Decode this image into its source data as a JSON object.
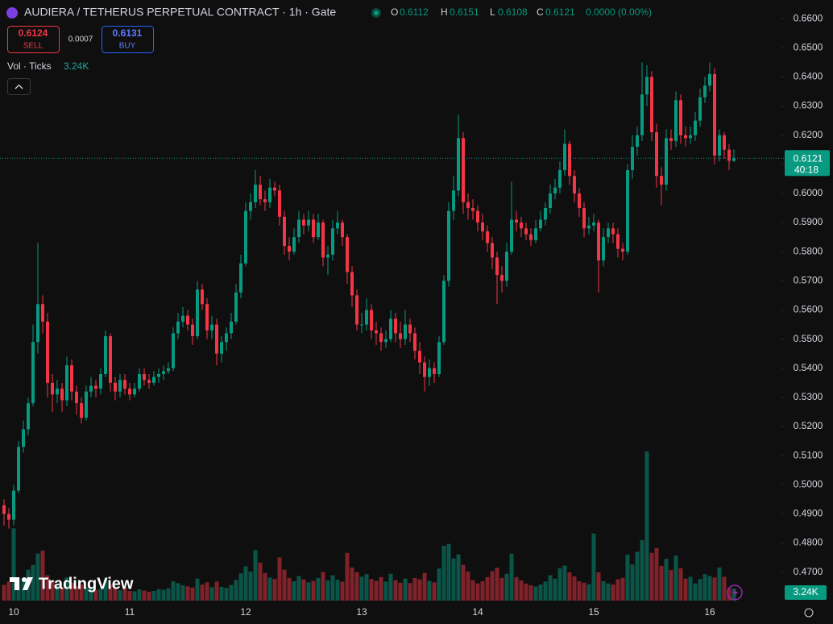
{
  "header": {
    "title": "AUDIERA / TETHERUS PERPETUAL CONTRACT · 1h · Gate",
    "o": "O",
    "h": "H",
    "l": "L",
    "c": "C",
    "change": "0.0000 (0.00%)"
  },
  "order_panel": {
    "sell_price": "0.6124",
    "sell": "SELL",
    "spread": "0.0007",
    "buy_price": "0.6131",
    "buy": "BUY"
  },
  "volume_legend": "Vol · Ticks",
  "watermark": "TradingView",
  "chart_data": {
    "type": "candlestick",
    "up_color": "#089981",
    "down_color": "#f23645",
    "grid": false,
    "last_volume_label": "3.24K",
    "countdown": "40:18",
    "ylim": [
      0.4594,
      0.6664
    ],
    "yticks": [
      {
        "value": 0.66,
        "label": "0.6600"
      },
      {
        "value": 0.65,
        "label": "0.6500"
      },
      {
        "value": 0.64,
        "label": "0.6400"
      },
      {
        "value": 0.63,
        "label": "0.6300"
      },
      {
        "value": 0.62,
        "label": "0.6200"
      },
      {
        "value": 0.61,
        "label": "0.6100"
      },
      {
        "value": 0.6,
        "label": "0.6000"
      },
      {
        "value": 0.59,
        "label": "0.5900"
      },
      {
        "value": 0.58,
        "label": "0.5800"
      },
      {
        "value": 0.57,
        "label": "0.5700"
      },
      {
        "value": 0.56,
        "label": "0.5600"
      },
      {
        "value": 0.55,
        "label": "0.5500"
      },
      {
        "value": 0.54,
        "label": "0.5400"
      },
      {
        "value": 0.53,
        "label": "0.5300"
      },
      {
        "value": 0.52,
        "label": "0.5200"
      },
      {
        "value": 0.51,
        "label": "0.5100"
      },
      {
        "value": 0.5,
        "label": "0.5000"
      },
      {
        "value": 0.49,
        "label": "0.4900"
      },
      {
        "value": 0.48,
        "label": "0.4800"
      },
      {
        "value": 0.47,
        "label": "0.4700"
      }
    ],
    "categories": [
      null,
      null,
      "10",
      null,
      null,
      null,
      null,
      null,
      null,
      null,
      null,
      null,
      null,
      null,
      null,
      null,
      null,
      null,
      null,
      null,
      null,
      null,
      null,
      null,
      null,
      null,
      "11",
      null,
      null,
      null,
      null,
      null,
      null,
      null,
      null,
      null,
      null,
      null,
      null,
      null,
      null,
      null,
      null,
      null,
      null,
      null,
      null,
      null,
      null,
      null,
      "12",
      null,
      null,
      null,
      null,
      null,
      null,
      null,
      null,
      null,
      null,
      null,
      null,
      null,
      null,
      null,
      null,
      null,
      null,
      null,
      null,
      null,
      null,
      null,
      "13",
      null,
      null,
      null,
      null,
      null,
      null,
      null,
      null,
      null,
      null,
      null,
      null,
      null,
      null,
      null,
      null,
      null,
      null,
      null,
      null,
      null,
      null,
      null,
      "14",
      null,
      null,
      null,
      null,
      null,
      null,
      null,
      null,
      null,
      null,
      null,
      null,
      null,
      null,
      null,
      null,
      null,
      null,
      null,
      null,
      null,
      null,
      null,
      "15",
      null,
      null,
      null,
      null,
      null,
      null,
      null,
      null,
      null,
      null,
      null,
      null,
      null,
      null,
      null,
      null,
      null,
      null,
      null,
      null,
      null,
      null,
      null,
      "16",
      null,
      null,
      null,
      null,
      null
    ],
    "open": [
      0.493,
      0.49,
      0.488,
      0.498,
      0.513,
      0.519,
      0.528,
      0.549,
      0.562,
      0.556,
      0.535,
      0.531,
      0.533,
      0.529,
      0.541,
      0.532,
      0.528,
      0.523,
      0.532,
      0.534,
      0.533,
      0.538,
      0.551,
      0.535,
      0.532,
      0.536,
      0.533,
      0.531,
      0.533,
      0.538,
      0.536,
      0.535,
      0.537,
      0.538,
      0.539,
      0.54,
      0.552,
      0.556,
      0.558,
      0.555,
      0.551,
      0.567,
      0.562,
      0.553,
      0.555,
      0.545,
      0.549,
      0.552,
      0.556,
      0.566,
      0.576,
      0.594,
      0.597,
      0.603,
      0.598,
      0.597,
      0.602,
      0.601,
      0.592,
      0.582,
      0.58,
      0.585,
      0.591,
      0.589,
      0.591,
      0.585,
      0.59,
      0.578,
      0.579,
      0.588,
      0.59,
      0.585,
      0.573,
      0.565,
      0.555,
      0.555,
      0.56,
      0.553,
      0.552,
      0.549,
      0.55,
      0.557,
      0.552,
      0.55,
      0.555,
      0.552,
      0.546,
      0.542,
      0.537,
      0.54,
      0.538,
      0.549,
      0.57,
      0.594,
      0.601,
      0.619,
      0.597,
      0.595,
      0.594,
      0.59,
      0.587,
      0.583,
      0.578,
      0.572,
      0.57,
      0.58,
      0.591,
      0.59,
      0.588,
      0.586,
      0.584,
      0.588,
      0.591,
      0.595,
      0.6,
      0.602,
      0.608,
      0.617,
      0.606,
      0.6,
      0.595,
      0.588,
      0.589,
      0.59,
      0.577,
      0.585,
      0.588,
      0.586,
      0.581,
      0.58,
      0.608,
      0.616,
      0.62,
      0.634,
      0.64,
      0.621,
      0.606,
      0.603,
      0.619,
      0.618,
      0.632,
      0.62,
      0.619,
      0.62,
      0.625,
      0.633,
      0.637,
      0.641,
      0.613,
      0.62,
      0.615,
      0.6112
    ],
    "high": [
      0.495,
      0.492,
      0.5,
      0.515,
      0.522,
      0.53,
      0.555,
      0.583,
      0.565,
      0.559,
      0.538,
      0.536,
      0.535,
      0.544,
      0.543,
      0.534,
      0.53,
      0.534,
      0.537,
      0.536,
      0.54,
      0.553,
      0.552,
      0.537,
      0.538,
      0.538,
      0.535,
      0.535,
      0.54,
      0.54,
      0.538,
      0.539,
      0.54,
      0.541,
      0.542,
      0.554,
      0.559,
      0.561,
      0.56,
      0.557,
      0.57,
      0.569,
      0.564,
      0.558,
      0.557,
      0.551,
      0.554,
      0.559,
      0.569,
      0.579,
      0.597,
      0.6,
      0.608,
      0.606,
      0.601,
      0.605,
      0.604,
      0.603,
      0.594,
      0.585,
      0.588,
      0.594,
      0.593,
      0.594,
      0.593,
      0.593,
      0.591,
      0.582,
      0.591,
      0.594,
      0.591,
      0.586,
      0.575,
      0.567,
      0.559,
      0.564,
      0.562,
      0.556,
      0.554,
      0.553,
      0.56,
      0.559,
      0.556,
      0.56,
      0.557,
      0.554,
      0.549,
      0.544,
      0.543,
      0.542,
      0.551,
      0.572,
      0.597,
      0.606,
      0.627,
      0.621,
      0.6,
      0.598,
      0.596,
      0.593,
      0.589,
      0.585,
      0.58,
      0.575,
      0.583,
      0.604,
      0.594,
      0.592,
      0.59,
      0.588,
      0.591,
      0.594,
      0.597,
      0.603,
      0.605,
      0.611,
      0.622,
      0.618,
      0.608,
      0.602,
      0.597,
      0.592,
      0.593,
      0.591,
      0.588,
      0.59,
      0.59,
      0.588,
      0.583,
      0.61,
      0.62,
      0.623,
      0.645,
      0.644,
      0.642,
      0.624,
      0.609,
      0.622,
      0.622,
      0.635,
      0.634,
      0.623,
      0.623,
      0.628,
      0.636,
      0.64,
      0.645,
      0.643,
      0.622,
      0.621,
      0.617,
      0.6151
    ],
    "low": [
      0.486,
      0.485,
      0.486,
      0.497,
      0.511,
      0.517,
      0.527,
      0.545,
      0.552,
      0.53,
      0.525,
      0.528,
      0.525,
      0.527,
      0.529,
      0.524,
      0.521,
      0.522,
      0.53,
      0.53,
      0.531,
      0.537,
      0.532,
      0.529,
      0.53,
      0.531,
      0.529,
      0.53,
      0.532,
      0.534,
      0.533,
      0.534,
      0.535,
      0.536,
      0.538,
      0.539,
      0.55,
      0.554,
      0.553,
      0.548,
      0.55,
      0.56,
      0.55,
      0.55,
      0.541,
      0.542,
      0.546,
      0.55,
      0.555,
      0.564,
      0.575,
      0.591,
      0.595,
      0.596,
      0.594,
      0.595,
      0.599,
      0.589,
      0.579,
      0.577,
      0.579,
      0.583,
      0.586,
      0.587,
      0.583,
      0.584,
      0.575,
      0.572,
      0.577,
      0.586,
      0.582,
      0.569,
      0.561,
      0.553,
      0.552,
      0.553,
      0.55,
      0.548,
      0.546,
      0.547,
      0.549,
      0.549,
      0.547,
      0.548,
      0.549,
      0.543,
      0.538,
      0.532,
      0.534,
      0.535,
      0.537,
      0.548,
      0.568,
      0.591,
      0.599,
      0.593,
      0.591,
      0.591,
      0.587,
      0.584,
      0.58,
      0.574,
      0.562,
      0.566,
      0.568,
      0.579,
      0.587,
      0.585,
      0.584,
      0.582,
      0.583,
      0.587,
      0.589,
      0.593,
      0.598,
      0.6,
      0.606,
      0.603,
      0.597,
      0.592,
      0.585,
      0.586,
      0.587,
      0.566,
      0.575,
      0.583,
      0.583,
      0.578,
      0.577,
      0.579,
      0.605,
      0.613,
      0.618,
      0.63,
      0.618,
      0.602,
      0.596,
      0.601,
      0.615,
      0.616,
      0.617,
      0.616,
      0.617,
      0.618,
      0.623,
      0.631,
      0.635,
      0.61,
      0.611,
      0.612,
      0.608,
      0.6108
    ],
    "close": [
      0.49,
      0.488,
      0.498,
      0.513,
      0.519,
      0.528,
      0.549,
      0.562,
      0.556,
      0.535,
      0.531,
      0.533,
      0.529,
      0.541,
      0.532,
      0.528,
      0.523,
      0.532,
      0.534,
      0.533,
      0.538,
      0.551,
      0.535,
      0.532,
      0.536,
      0.533,
      0.531,
      0.533,
      0.538,
      0.536,
      0.535,
      0.537,
      0.538,
      0.539,
      0.54,
      0.552,
      0.556,
      0.558,
      0.555,
      0.551,
      0.567,
      0.562,
      0.553,
      0.555,
      0.545,
      0.549,
      0.552,
      0.556,
      0.566,
      0.576,
      0.594,
      0.597,
      0.603,
      0.598,
      0.597,
      0.602,
      0.601,
      0.592,
      0.582,
      0.58,
      0.585,
      0.591,
      0.589,
      0.591,
      0.585,
      0.59,
      0.578,
      0.579,
      0.588,
      0.59,
      0.585,
      0.573,
      0.565,
      0.555,
      0.555,
      0.56,
      0.553,
      0.552,
      0.549,
      0.55,
      0.557,
      0.552,
      0.55,
      0.555,
      0.552,
      0.546,
      0.542,
      0.537,
      0.54,
      0.538,
      0.549,
      0.57,
      0.594,
      0.601,
      0.619,
      0.597,
      0.595,
      0.594,
      0.59,
      0.587,
      0.583,
      0.578,
      0.572,
      0.57,
      0.58,
      0.591,
      0.59,
      0.588,
      0.586,
      0.584,
      0.588,
      0.591,
      0.595,
      0.6,
      0.602,
      0.608,
      0.617,
      0.606,
      0.6,
      0.595,
      0.588,
      0.589,
      0.59,
      0.577,
      0.585,
      0.588,
      0.586,
      0.581,
      0.58,
      0.608,
      0.616,
      0.62,
      0.634,
      0.64,
      0.621,
      0.606,
      0.603,
      0.619,
      0.618,
      0.632,
      0.62,
      0.619,
      0.62,
      0.625,
      0.633,
      0.637,
      0.641,
      0.613,
      0.62,
      0.615,
      0.6112,
      0.6121
    ],
    "volume": [
      4200,
      5100,
      19400,
      6200,
      5400,
      8300,
      9600,
      12600,
      13400,
      6800,
      5300,
      4100,
      3500,
      6200,
      4800,
      3900,
      4400,
      3600,
      3300,
      2900,
      3100,
      5600,
      4300,
      3200,
      2800,
      3400,
      2600,
      2500,
      3000,
      2700,
      2400,
      2600,
      3100,
      2900,
      3300,
      5200,
      4700,
      4100,
      3800,
      3500,
      5900,
      4300,
      4900,
      3600,
      5100,
      3700,
      3400,
      4200,
      5500,
      7300,
      9200,
      7800,
      13500,
      10200,
      7400,
      6200,
      5800,
      11600,
      8300,
      6100,
      5200,
      6600,
      5700,
      4900,
      5300,
      6100,
      7700,
      5400,
      6800,
      5600,
      5100,
      12800,
      8900,
      7600,
      6400,
      7100,
      5800,
      5300,
      6300,
      5100,
      7200,
      5500,
      4800,
      5900,
      4700,
      6100,
      5700,
      7400,
      5300,
      4900,
      8600,
      14700,
      15200,
      11300,
      12400,
      9600,
      7800,
      5500,
      4600,
      5200,
      6300,
      7900,
      8800,
      6100,
      7200,
      12600,
      6300,
      5400,
      4600,
      4100,
      3800,
      4300,
      5100,
      6800,
      5900,
      8700,
      9400,
      7600,
      6500,
      5200,
      4800,
      4400,
      18000,
      7600,
      5200,
      4600,
      4300,
      5700,
      6100,
      12300,
      9700,
      13100,
      16200,
      40000,
      12800,
      14100,
      9300,
      11200,
      8200,
      12100,
      8700,
      5900,
      6400,
      4600,
      5800,
      7100,
      6600,
      6200,
      8900,
      6400,
      3300,
      3240
    ]
  }
}
